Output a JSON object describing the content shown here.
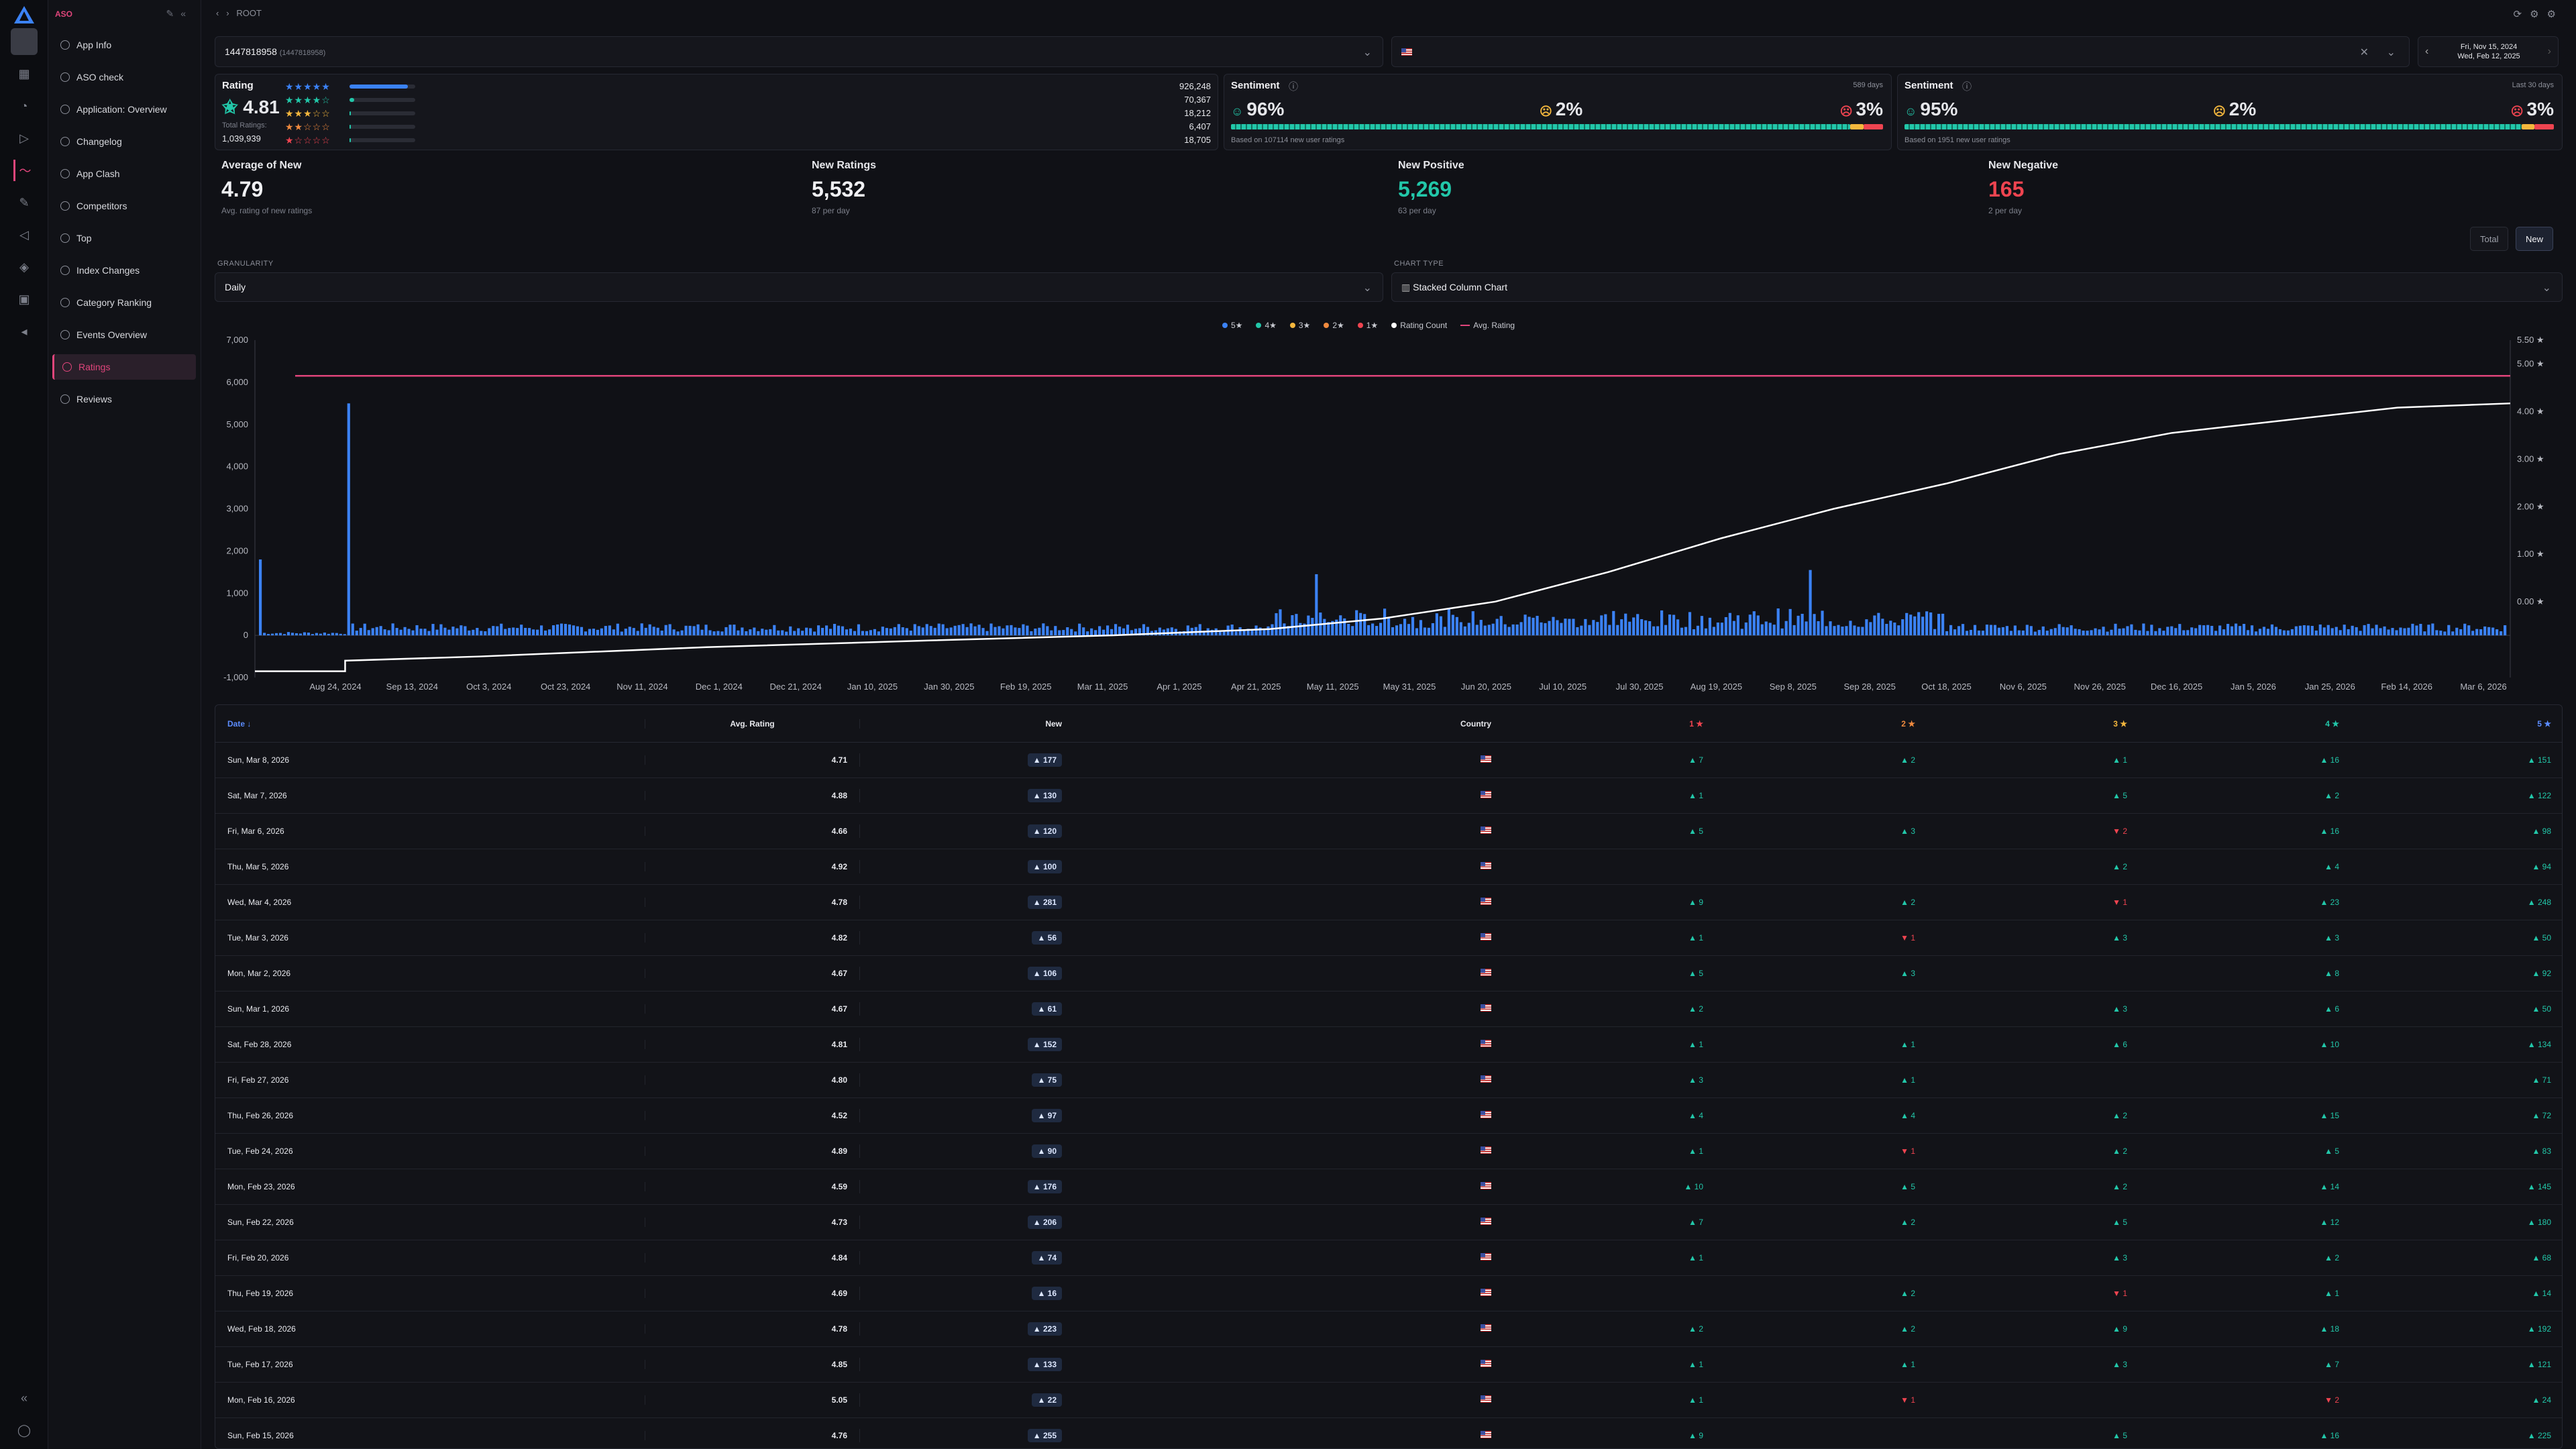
{
  "sidebar": {
    "header": "ASO",
    "items": [
      {
        "label": "App Info"
      },
      {
        "label": "ASO check"
      },
      {
        "label": "Application: Overview"
      },
      {
        "label": "Changelog"
      },
      {
        "label": "App Clash"
      },
      {
        "label": "Competitors"
      },
      {
        "label": "Top"
      },
      {
        "label": "Index Changes"
      },
      {
        "label": "Category Ranking"
      },
      {
        "label": "Events Overview"
      },
      {
        "label": "Ratings"
      },
      {
        "label": "Reviews"
      }
    ],
    "active_index": 10
  },
  "breadcrumb": "ROOT",
  "app_select": {
    "value": "1447818958",
    "sub": "(1447818958)"
  },
  "date_range": {
    "from": "Fri, Nov 15, 2024",
    "to": "Wed, Feb 12, 2025"
  },
  "rating_card": {
    "title": "Rating",
    "value": "4.81",
    "total_label": "Total Ratings:",
    "total": "1,039,939",
    "bars": [
      {
        "count": "926,248",
        "pct": 0.89
      },
      {
        "count": "70,367",
        "pct": 0.07
      },
      {
        "count": "18,212",
        "pct": 0.02
      },
      {
        "count": "6,407",
        "pct": 0.01
      },
      {
        "count": "18,705",
        "pct": 0.02
      }
    ]
  },
  "sentiment_1": {
    "title": "Sentiment",
    "period": "589 days",
    "pos": "96%",
    "neu": "2%",
    "neg": "3%",
    "note": "Based on 107114 new user ratings"
  },
  "sentiment_2": {
    "title": "Sentiment",
    "period": "Last 30 days",
    "pos": "95%",
    "neu": "2%",
    "neg": "3%",
    "note": "Based on 1951 new user ratings"
  },
  "stats": [
    {
      "title": "Average of New",
      "value": "4.79",
      "sub": "Avg. rating of new ratings"
    },
    {
      "title": "New Ratings",
      "value": "5,532",
      "sub": "87 per day"
    },
    {
      "title": "New Positive",
      "value": "5,269",
      "sub": "63 per day"
    },
    {
      "title": "New Negative",
      "value": "165",
      "sub": "2 per day"
    }
  ],
  "toggles": {
    "total": "Total",
    "new": "New"
  },
  "granularity": {
    "label": "GRANULARITY",
    "value": "Daily"
  },
  "chart_type": {
    "label": "CHART TYPE",
    "value": "Stacked Column Chart"
  },
  "legend": [
    "5★",
    "4★",
    "3★",
    "2★",
    "1★",
    "Rating Count",
    "Avg. Rating"
  ],
  "colors": {
    "s5": "#3b82f6",
    "s4": "#22c7a9",
    "s3": "#f4b73d",
    "s2": "#f08a3e",
    "s1": "#ef4450",
    "avg": "#e0457b",
    "count": "#ffffff"
  },
  "chart_data": {
    "type": "bar",
    "y_left_ticks": [
      "7,000",
      "6,000",
      "5,000",
      "4,000",
      "3,000",
      "2,000",
      "1,000",
      "0",
      "-1,000"
    ],
    "y_right_ticks": [
      "5.50 ★",
      "5.00 ★",
      "4.00 ★",
      "3.00 ★",
      "2.00 ★",
      "1.00 ★",
      "0.00 ★"
    ],
    "x_ticks": [
      "Aug 24, 2024",
      "Sep 13, 2024",
      "Oct 3, 2024",
      "Oct 23, 2024",
      "Nov 11, 2024",
      "Dec 1, 2024",
      "Dec 21, 2024",
      "Jan 10, 2025",
      "Jan 30, 2025",
      "Feb 19, 2025",
      "Mar 11, 2025",
      "Apr 1, 2025",
      "Apr 21, 2025",
      "May 11, 2025",
      "May 31, 2025",
      "Jun 20, 2025",
      "Jul 10, 2025",
      "Jul 30, 2025",
      "Aug 19, 2025",
      "Sep 8, 2025",
      "Sep 28, 2025",
      "Oct 18, 2025",
      "Nov 6, 2025",
      "Nov 26, 2025",
      "Dec 16, 2025",
      "Jan 5, 2026",
      "Jan 25, 2026",
      "Feb 14, 2026",
      "Mar 6, 2026"
    ],
    "ylim": [
      -1000,
      7000
    ],
    "y2lim": [
      0,
      5.5
    ],
    "avg_rating_level": 4.75,
    "rating_count_curve": [
      [
        0,
        -850
      ],
      [
        0.04,
        -850
      ],
      [
        0.04,
        -600
      ],
      [
        0.1,
        -500
      ],
      [
        0.2,
        -280
      ],
      [
        0.3,
        -120
      ],
      [
        0.38,
        0
      ],
      [
        0.45,
        150
      ],
      [
        0.5,
        400
      ],
      [
        0.55,
        800
      ],
      [
        0.6,
        1500
      ],
      [
        0.65,
        2300
      ],
      [
        0.7,
        3000
      ],
      [
        0.75,
        3600
      ],
      [
        0.8,
        4300
      ],
      [
        0.85,
        4800
      ],
      [
        0.9,
        5100
      ],
      [
        0.95,
        5400
      ],
      [
        1,
        5500
      ]
    ],
    "spikes": [
      [
        0.0,
        1800
      ],
      [
        0.04,
        5500
      ],
      [
        0.47,
        1450
      ],
      [
        0.69,
        1550
      ]
    ],
    "bar_baseline": 220
  },
  "table": {
    "headers": {
      "date": "Date ↓",
      "avg": "Avg. Rating",
      "new": "New",
      "country": "Country",
      "s1": "1 ★",
      "s2": "2 ★",
      "s3": "3 ★",
      "s4": "4 ★",
      "s5": "5 ★"
    },
    "rows": [
      {
        "date": "Sun, Mar 8, 2026",
        "avg": "4.71",
        "new": "▲ 177",
        "s1": "▲ 7",
        "s2": "▲ 2",
        "s3": "▲ 1",
        "s4": "▲ 16",
        "s5": "▲ 151"
      },
      {
        "date": "Sat, Mar 7, 2026",
        "avg": "4.88",
        "new": "▲ 130",
        "s1": "▲ 1",
        "s2": "",
        "s3": "▲ 5",
        "s4": "▲ 2",
        "s5": "▲ 122"
      },
      {
        "date": "Fri, Mar 6, 2026",
        "avg": "4.66",
        "new": "▲ 120",
        "s1": "▲ 5",
        "s2": "▲ 3",
        "s3": "▼ 2",
        "s4": "▲ 16",
        "s5": "▲ 98"
      },
      {
        "date": "Thu, Mar 5, 2026",
        "avg": "4.92",
        "new": "▲ 100",
        "s1": "",
        "s2": "",
        "s3": "▲ 2",
        "s4": "▲ 4",
        "s5": "▲ 94"
      },
      {
        "date": "Wed, Mar 4, 2026",
        "avg": "4.78",
        "new": "▲ 281",
        "s1": "▲ 9",
        "s2": "▲ 2",
        "s3": "▼ 1",
        "s4": "▲ 23",
        "s5": "▲ 248"
      },
      {
        "date": "Tue, Mar 3, 2026",
        "avg": "4.82",
        "new": "▲ 56",
        "s1": "▲ 1",
        "s2": "▼ 1",
        "s3": "▲ 3",
        "s4": "▲ 3",
        "s5": "▲ 50"
      },
      {
        "date": "Mon, Mar 2, 2026",
        "avg": "4.67",
        "new": "▲ 106",
        "s1": "▲ 5",
        "s2": "▲ 3",
        "s3": "",
        "s4": "▲ 8",
        "s5": "▲ 92"
      },
      {
        "date": "Sun, Mar 1, 2026",
        "avg": "4.67",
        "new": "▲ 61",
        "s1": "▲ 2",
        "s2": "",
        "s3": "▲ 3",
        "s4": "▲ 6",
        "s5": "▲ 50"
      },
      {
        "date": "Sat, Feb 28, 2026",
        "avg": "4.81",
        "new": "▲ 152",
        "s1": "▲ 1",
        "s2": "▲ 1",
        "s3": "▲ 6",
        "s4": "▲ 10",
        "s5": "▲ 134"
      },
      {
        "date": "Fri, Feb 27, 2026",
        "avg": "4.80",
        "new": "▲ 75",
        "s1": "▲ 3",
        "s2": "▲ 1",
        "s3": "",
        "s4": "",
        "s5": "▲ 71"
      },
      {
        "date": "Thu, Feb 26, 2026",
        "avg": "4.52",
        "new": "▲ 97",
        "s1": "▲ 4",
        "s2": "▲ 4",
        "s3": "▲ 2",
        "s4": "▲ 15",
        "s5": "▲ 72"
      },
      {
        "date": "Tue, Feb 24, 2026",
        "avg": "4.89",
        "new": "▲ 90",
        "s1": "▲ 1",
        "s2": "▼ 1",
        "s3": "▲ 2",
        "s4": "▲ 5",
        "s5": "▲ 83"
      },
      {
        "date": "Mon, Feb 23, 2026",
        "avg": "4.59",
        "new": "▲ 176",
        "s1": "▲ 10",
        "s2": "▲ 5",
        "s3": "▲ 2",
        "s4": "▲ 14",
        "s5": "▲ 145"
      },
      {
        "date": "Sun, Feb 22, 2026",
        "avg": "4.73",
        "new": "▲ 206",
        "s1": "▲ 7",
        "s2": "▲ 2",
        "s3": "▲ 5",
        "s4": "▲ 12",
        "s5": "▲ 180"
      },
      {
        "date": "Fri, Feb 20, 2026",
        "avg": "4.84",
        "new": "▲ 74",
        "s1": "▲ 1",
        "s2": "",
        "s3": "▲ 3",
        "s4": "▲ 2",
        "s5": "▲ 68"
      },
      {
        "date": "Thu, Feb 19, 2026",
        "avg": "4.69",
        "new": "▲ 16",
        "s1": "",
        "s2": "▲ 2",
        "s3": "▼ 1",
        "s4": "▲ 1",
        "s5": "▲ 14"
      },
      {
        "date": "Wed, Feb 18, 2026",
        "avg": "4.78",
        "new": "▲ 223",
        "s1": "▲ 2",
        "s2": "▲ 2",
        "s3": "▲ 9",
        "s4": "▲ 18",
        "s5": "▲ 192"
      },
      {
        "date": "Tue, Feb 17, 2026",
        "avg": "4.85",
        "new": "▲ 133",
        "s1": "▲ 1",
        "s2": "▲ 1",
        "s3": "▲ 3",
        "s4": "▲ 7",
        "s5": "▲ 121"
      },
      {
        "date": "Mon, Feb 16, 2026",
        "avg": "5.05",
        "new": "▲ 22",
        "s1": "▲ 1",
        "s2": "▼ 1",
        "s3": "",
        "s4": "▼ 2",
        "s5": "▲ 24"
      },
      {
        "date": "Sun, Feb 15, 2026",
        "avg": "4.76",
        "new": "▲ 255",
        "s1": "▲ 9",
        "s2": "",
        "s3": "▲ 5",
        "s4": "▲ 16",
        "s5": "▲ 225"
      }
    ]
  }
}
